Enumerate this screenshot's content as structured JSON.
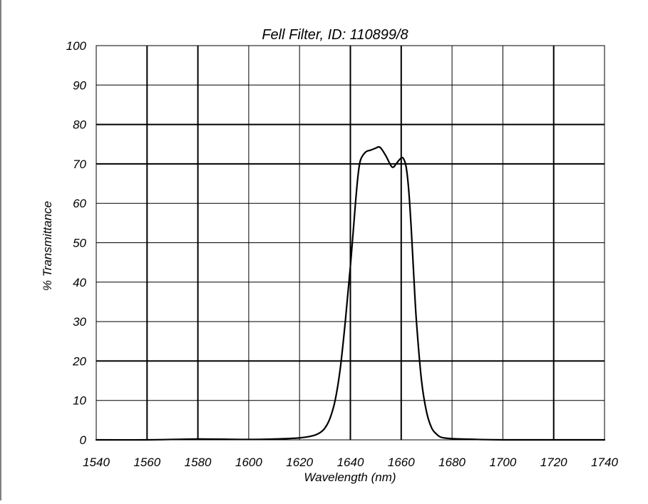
{
  "chart_data": {
    "type": "line",
    "title": "Fell Filter, ID: 110899/8",
    "xlabel": "Wavelength (nm)",
    "ylabel": "% Transmittance",
    "xlim": [
      1540,
      1740
    ],
    "ylim": [
      0,
      100
    ],
    "x_ticks": [
      1540,
      1560,
      1580,
      1600,
      1620,
      1640,
      1660,
      1680,
      1700,
      1720,
      1740
    ],
    "y_ticks": [
      0,
      10,
      20,
      30,
      40,
      50,
      60,
      70,
      80,
      90,
      100
    ],
    "grid": true,
    "legend": "none",
    "series": [
      {
        "x": [
          1540,
          1560,
          1580,
          1600,
          1610,
          1620,
          1625,
          1628,
          1630,
          1632,
          1634,
          1636,
          1638,
          1640,
          1642,
          1643,
          1644,
          1646,
          1648,
          1650,
          1651,
          1652,
          1654,
          1656,
          1657,
          1658,
          1660,
          1661,
          1662,
          1663,
          1664,
          1665,
          1666,
          1668,
          1670,
          1672,
          1674,
          1676,
          1680,
          1690,
          1700,
          1720,
          1740
        ],
        "y": [
          0,
          0,
          0.2,
          0.1,
          0.2,
          0.5,
          1.0,
          1.8,
          3.0,
          5.5,
          10,
          18,
          30,
          44,
          60,
          67,
          71,
          73,
          73.5,
          74,
          74.3,
          74,
          72,
          69.5,
          69.2,
          70,
          71.5,
          71.2,
          69,
          63,
          53,
          41,
          30,
          15,
          7,
          3,
          1.4,
          0.6,
          0.3,
          0.1,
          0,
          0,
          0
        ]
      }
    ]
  }
}
